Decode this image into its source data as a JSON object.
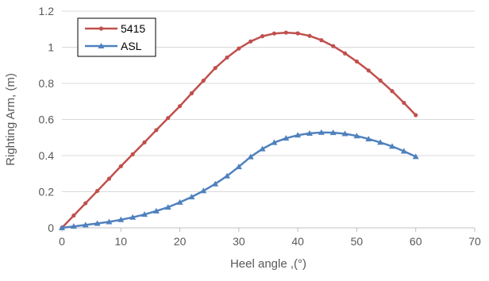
{
  "chart_data": {
    "type": "line",
    "title": "",
    "xlabel": "Heel angle ,(°)",
    "ylabel": "Righting Arm, (m)",
    "xlim": [
      0,
      70
    ],
    "ylim": [
      0,
      1.2
    ],
    "x_ticks": [
      0,
      10,
      20,
      30,
      40,
      50,
      60,
      70
    ],
    "y_ticks": [
      0,
      0.2,
      0.4,
      0.6,
      0.8,
      1,
      1.2
    ],
    "x_tick_labels": [
      "0",
      "10",
      "20",
      "30",
      "40",
      "50",
      "60",
      "70"
    ],
    "y_tick_labels": [
      "0",
      "0.2",
      "0.4",
      "0.6",
      "0.8",
      "1",
      "1.2"
    ],
    "grid": {
      "horizontal": true,
      "vertical": false
    },
    "legend_position": "top-left",
    "series": [
      {
        "name": "5415",
        "color": "#c0504d",
        "marker": "circle",
        "x": [
          0,
          2,
          4,
          6,
          8,
          10,
          12,
          14,
          16,
          18,
          20,
          22,
          24,
          26,
          28,
          30,
          32,
          34,
          36,
          38,
          40,
          42,
          44,
          46,
          48,
          50,
          52,
          54,
          56,
          58,
          60
        ],
        "y": [
          0,
          0.068,
          0.136,
          0.204,
          0.272,
          0.341,
          0.407,
          0.473,
          0.541,
          0.608,
          0.674,
          0.745,
          0.815,
          0.885,
          0.943,
          0.993,
          1.032,
          1.061,
          1.076,
          1.081,
          1.077,
          1.063,
          1.039,
          1.006,
          0.966,
          0.921,
          0.871,
          0.816,
          0.757,
          0.692,
          0.624
        ]
      },
      {
        "name": "ASL",
        "color": "#4f81bd",
        "marker": "triangle",
        "x": [
          0,
          2,
          4,
          6,
          8,
          10,
          12,
          14,
          16,
          18,
          20,
          22,
          24,
          26,
          28,
          30,
          32,
          34,
          36,
          38,
          40,
          42,
          44,
          46,
          48,
          50,
          52,
          54,
          56,
          58,
          60
        ],
        "y": [
          0,
          0.008,
          0.016,
          0.024,
          0.033,
          0.045,
          0.058,
          0.074,
          0.093,
          0.114,
          0.141,
          0.171,
          0.205,
          0.243,
          0.287,
          0.338,
          0.393,
          0.437,
          0.472,
          0.496,
          0.513,
          0.523,
          0.528,
          0.527,
          0.521,
          0.509,
          0.492,
          0.473,
          0.451,
          0.424,
          0.394
        ]
      }
    ]
  }
}
